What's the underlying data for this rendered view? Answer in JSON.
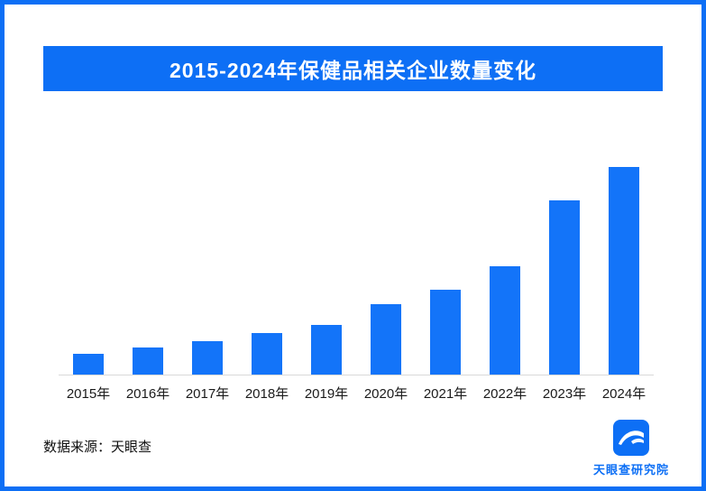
{
  "frame": {
    "border_color": "#0d6ff5",
    "background": "#ffffff"
  },
  "header": {
    "title": "2015-2024年保健品相关企业数量变化",
    "background": "#0d6ff5",
    "text_color": "#ffffff"
  },
  "chart_data": {
    "type": "bar",
    "title": "2015-2024年保健品相关企业数量变化",
    "categories": [
      "2015年",
      "2016年",
      "2017年",
      "2018年",
      "2019年",
      "2020年",
      "2021年",
      "2022年",
      "2023年",
      "2024年"
    ],
    "values": [
      10,
      13,
      16,
      20,
      24,
      34,
      41,
      52,
      84,
      100
    ],
    "xlabel": "",
    "ylabel": "",
    "ylim": [
      0,
      100
    ],
    "bar_color": "#1374f9",
    "axis_line_color": "#d9d9d9",
    "grid": "off",
    "legend": "none",
    "y_axis_visible": false
  },
  "footer": {
    "source_label": "数据来源：天眼查"
  },
  "logo": {
    "brand_name": "天眼查研究院",
    "icon": "tianyancha-eye-logo",
    "color": "#0d6ff5"
  }
}
